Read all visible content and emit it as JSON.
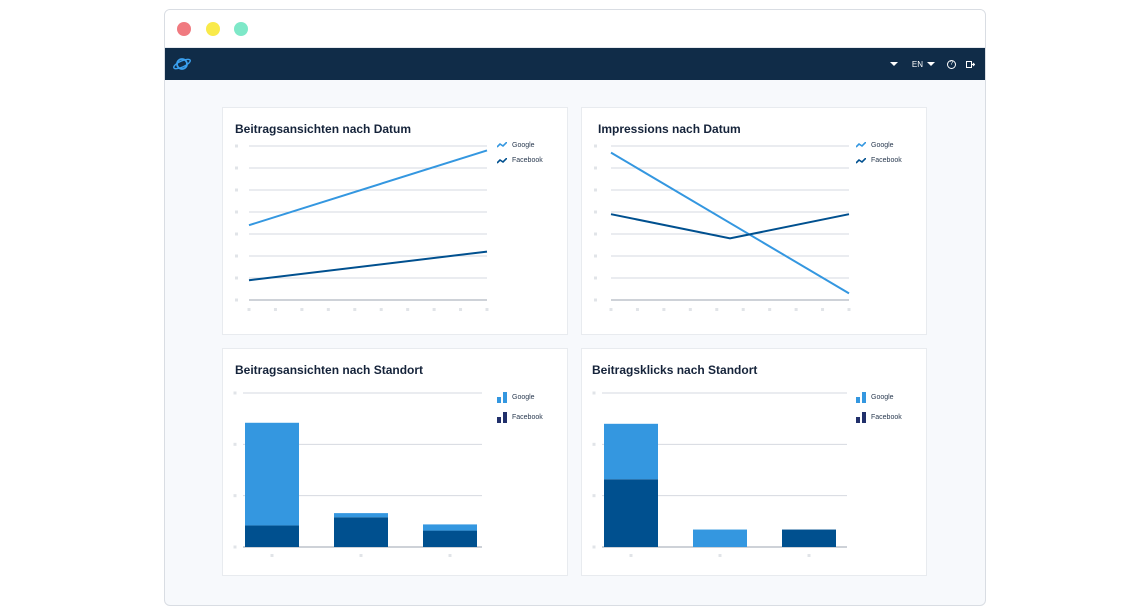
{
  "window": {
    "dots": [
      {
        "name": "close-dot",
        "color": "#f07a80"
      },
      {
        "name": "minimize-dot",
        "color": "#f9ea4a"
      },
      {
        "name": "maximize-dot",
        "color": "#7ee8c8"
      }
    ]
  },
  "navbar": {
    "logo_icon": "planet-icon",
    "language": "EN",
    "icons": [
      "caret-down-icon",
      "help-icon",
      "logout-icon"
    ]
  },
  "colors": {
    "google": "#3497e0",
    "facebook": "#00508f",
    "grid": "#d6dae0",
    "axis": "#9ea6b0",
    "tick": "#e1e4e8"
  },
  "panels": [
    {
      "title": "Beitragsansichten nach Datum",
      "legend": [
        "Google",
        "Facebook"
      ],
      "chart_data": {
        "type": "line",
        "title": "Beitragsansichten nach Datum",
        "series": [
          {
            "name": "Google",
            "values": [
              34,
              68
            ]
          },
          {
            "name": "Facebook",
            "values": [
              9,
              22
            ]
          }
        ],
        "ylim": [
          0,
          70
        ],
        "grid": true,
        "legend": "top-right"
      }
    },
    {
      "title": "Impressions nach Datum",
      "legend": [
        "Google",
        "Facebook"
      ],
      "chart_data": {
        "type": "line",
        "title": "Impressions nach Datum",
        "series": [
          {
            "name": "Google",
            "values": [
              67,
              3
            ]
          },
          {
            "name": "Facebook",
            "values": [
              39,
              28,
              39
            ]
          }
        ],
        "ylim": [
          0,
          70
        ],
        "grid": true,
        "legend": "top-right"
      }
    },
    {
      "title": "Beitragsansichten nach Standort",
      "legend": [
        "Google",
        "Facebook"
      ],
      "chart_data": {
        "type": "bar",
        "title": "Beitragsansichten nach Standort",
        "series": [
          {
            "name": "Google",
            "values": [
              100,
              4,
              6
            ]
          },
          {
            "name": "Facebook",
            "values": [
              21,
              29,
              16
            ]
          }
        ],
        "stacked": true,
        "ylim": [
          0,
          150
        ],
        "grid": true,
        "legend": "top-right"
      }
    },
    {
      "title": "Beitragsklicks nach Standort",
      "legend": [
        "Google",
        "Facebook"
      ],
      "chart_data": {
        "type": "bar",
        "title": "Beitragsklicks nach Standort",
        "series": [
          {
            "name": "Google",
            "values": [
              54,
              17,
              0
            ]
          },
          {
            "name": "Facebook",
            "values": [
              66,
              0,
              17
            ]
          }
        ],
        "stacked": true,
        "ylim": [
          0,
          150
        ],
        "grid": true,
        "legend": "top-right"
      }
    }
  ]
}
